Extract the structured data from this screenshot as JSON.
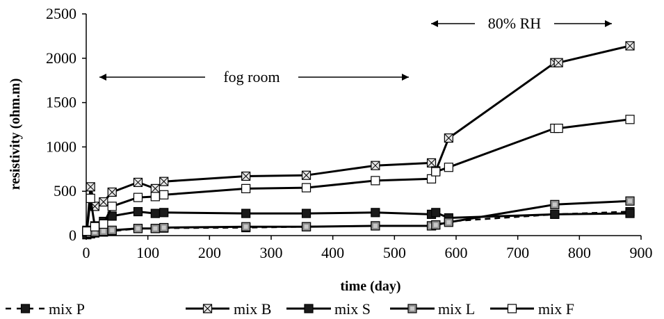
{
  "chart_data": {
    "type": "line",
    "xlabel": "time (day)",
    "ylabel": "resistivity (ohm.m)",
    "xlim": [
      0,
      900
    ],
    "ylim": [
      0,
      2500
    ],
    "xticks": [
      "0",
      "100",
      "200",
      "300",
      "400",
      "500",
      "600",
      "700",
      "800",
      "900"
    ],
    "yticks": [
      "0",
      "500",
      "1000",
      "1500",
      "2000",
      "2500"
    ],
    "grid": false,
    "legend_position": "bottom",
    "annotations": [
      {
        "text": "fog room"
      },
      {
        "text": "80% RH"
      }
    ],
    "series": [
      {
        "name": "mix P",
        "style": "dashed",
        "marker": "filled-square",
        "x": [
          1,
          7,
          14,
          28,
          42,
          84,
          112,
          126,
          259,
          357,
          469,
          560,
          567,
          588,
          760,
          882
        ],
        "y": [
          10,
          20,
          30,
          40,
          50,
          80,
          80,
          85,
          90,
          100,
          110,
          110,
          120,
          160,
          240,
          270
        ]
      },
      {
        "name": "mix B",
        "style": "solid",
        "marker": "x-square",
        "x": [
          1,
          7,
          14,
          28,
          42,
          84,
          112,
          126,
          259,
          357,
          469,
          560,
          567,
          588,
          760,
          766,
          882
        ],
        "y": [
          50,
          550,
          330,
          380,
          490,
          600,
          530,
          610,
          670,
          680,
          790,
          820,
          730,
          1100,
          1950,
          1950,
          2140
        ]
      },
      {
        "name": "mix S",
        "style": "solid",
        "marker": "filled-square",
        "x": [
          1,
          7,
          14,
          28,
          42,
          84,
          112,
          126,
          259,
          357,
          469,
          560,
          567,
          588,
          760,
          882
        ],
        "y": [
          60,
          40,
          110,
          160,
          220,
          270,
          250,
          260,
          250,
          250,
          260,
          240,
          260,
          200,
          240,
          250
        ]
      },
      {
        "name": "mix L",
        "style": "solid",
        "marker": "gray-square",
        "x": [
          1,
          7,
          14,
          28,
          42,
          84,
          112,
          126,
          259,
          357,
          469,
          560,
          567,
          588,
          760,
          882
        ],
        "y": [
          40,
          30,
          40,
          50,
          60,
          80,
          80,
          90,
          100,
          100,
          110,
          110,
          120,
          150,
          350,
          390
        ]
      },
      {
        "name": "mix F",
        "style": "solid",
        "marker": "open-square",
        "x": [
          1,
          7,
          14,
          28,
          42,
          84,
          112,
          126,
          259,
          357,
          469,
          560,
          567,
          588,
          760,
          766,
          882
        ],
        "y": [
          50,
          420,
          100,
          130,
          330,
          430,
          440,
          460,
          530,
          540,
          620,
          640,
          720,
          770,
          1210,
          1210,
          1310
        ]
      }
    ],
    "colors": {
      "line": "#000000",
      "marker_fill_filled": "#1a1a1a",
      "marker_fill_gray": "#909090",
      "marker_fill_open": "#ffffff",
      "marker_fill_x": "#e6e6e6"
    }
  }
}
